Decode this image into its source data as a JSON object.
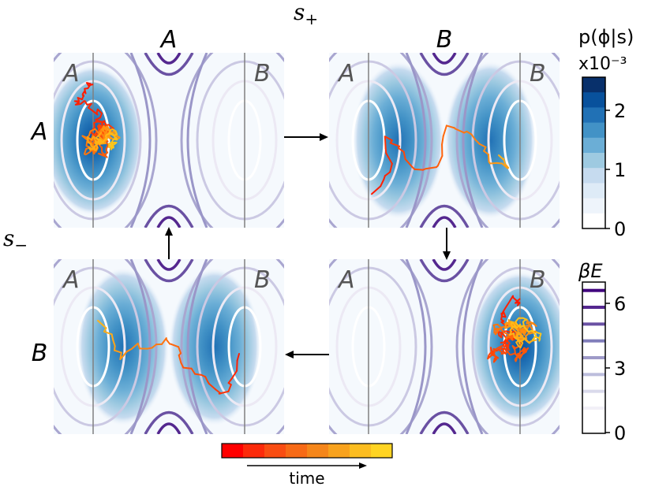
{
  "top_state_label": "s+",
  "left_state_label": "s−",
  "column_headers": [
    "A",
    "B"
  ],
  "row_headers": [
    "A",
    "B"
  ],
  "panel_region_labels": [
    "A",
    "B"
  ],
  "colorbar_p": {
    "title": "p(ϕ|s)",
    "multiplier": "x10⁻³",
    "ticks": [
      "0",
      "1",
      "2"
    ],
    "colors": [
      "#ffffff",
      "#eef4fb",
      "#deebf7",
      "#c6dbef",
      "#9ecae1",
      "#6baed6",
      "#4292c6",
      "#2171b5",
      "#08519c",
      "#08306b"
    ]
  },
  "colorbar_energy": {
    "title": "βE",
    "ticks": [
      "0",
      "3",
      "6"
    ],
    "colors": [
      "#ffffff",
      "#f2f0f7",
      "#dadaeb",
      "#bcbddc",
      "#9e9ac8",
      "#807dba",
      "#6a51a3",
      "#54278f",
      "#3f007d"
    ]
  },
  "time_bar": {
    "label": "time",
    "colors": [
      "#ff0000",
      "#fc2a0a",
      "#f94d12",
      "#f76a16",
      "#f5861a",
      "#f8a21d",
      "#fcbd20",
      "#ffd423"
    ]
  }
}
